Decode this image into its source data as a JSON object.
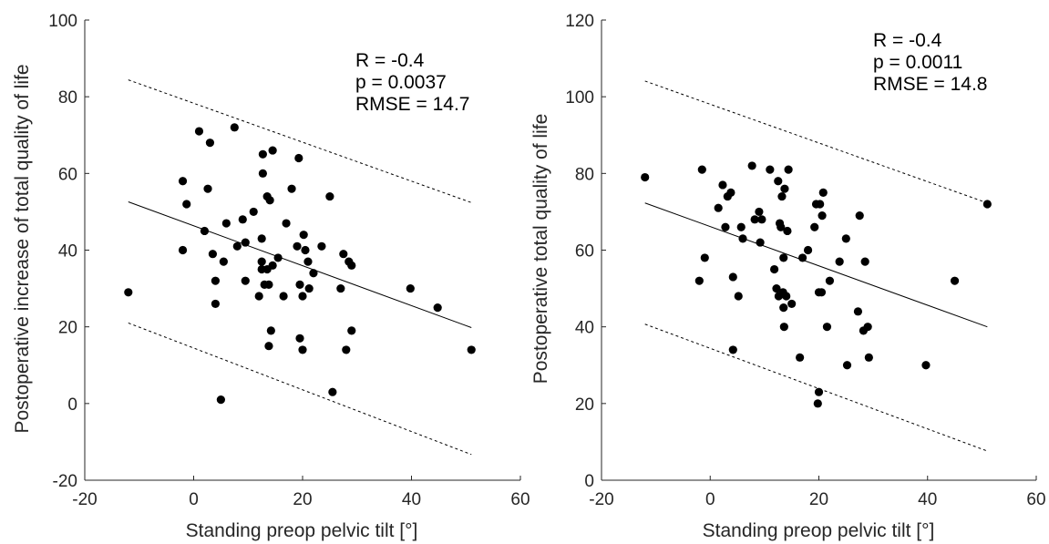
{
  "chart_data": [
    {
      "type": "scatter",
      "xlabel": "Standing preop pelvic tilt [°]",
      "ylabel": "Postoperative increase of total quality of life",
      "xlim": [
        -20,
        60
      ],
      "ylim": [
        -20,
        100
      ],
      "xticks": [
        -20,
        0,
        20,
        40,
        60
      ],
      "yticks": [
        -20,
        0,
        20,
        40,
        60,
        80,
        100
      ],
      "x_tick_labels": [
        "-20",
        "0",
        "20",
        "40",
        "60"
      ],
      "y_tick_labels": [
        "-20",
        "0",
        "20",
        "40",
        "60",
        "80",
        "100"
      ],
      "annotations": [
        "R = -0.4",
        "p = 0.0037",
        "RMSE = 14.7"
      ],
      "fit_line": {
        "x": [
          -12,
          51
        ],
        "y": [
          52.6,
          19.8
        ]
      },
      "prediction_bounds": {
        "upper": {
          "x": [
            -12,
            51
          ],
          "y": [
            84.4,
            52.4
          ]
        },
        "lower": {
          "x": [
            -12,
            51
          ],
          "y": [
            21.0,
            -13.3
          ]
        }
      },
      "points": [
        [
          -12,
          29
        ],
        [
          -2,
          40
        ],
        [
          -2,
          58
        ],
        [
          -1.3,
          52
        ],
        [
          1,
          71
        ],
        [
          2,
          45
        ],
        [
          2.6,
          56
        ],
        [
          3,
          68
        ],
        [
          3.5,
          39
        ],
        [
          4,
          32
        ],
        [
          4,
          26
        ],
        [
          5,
          1
        ],
        [
          5.5,
          37
        ],
        [
          6,
          47
        ],
        [
          7.5,
          72
        ],
        [
          8,
          41
        ],
        [
          9,
          48
        ],
        [
          9.5,
          32
        ],
        [
          9.5,
          42
        ],
        [
          11,
          50
        ],
        [
          12,
          28
        ],
        [
          12.5,
          37
        ],
        [
          12.5,
          35
        ],
        [
          12.5,
          43
        ],
        [
          12.7,
          60
        ],
        [
          12.7,
          65
        ],
        [
          13,
          31
        ],
        [
          13.5,
          54
        ],
        [
          13.5,
          35
        ],
        [
          13.8,
          31
        ],
        [
          13.8,
          15
        ],
        [
          14,
          53
        ],
        [
          14.2,
          19
        ],
        [
          14.5,
          36
        ],
        [
          14.5,
          66
        ],
        [
          15.5,
          38
        ],
        [
          16.5,
          28
        ],
        [
          17,
          47
        ],
        [
          18,
          56
        ],
        [
          19,
          41
        ],
        [
          19.3,
          64
        ],
        [
          19.5,
          31
        ],
        [
          19.5,
          17
        ],
        [
          20,
          14
        ],
        [
          20,
          28
        ],
        [
          20.2,
          44
        ],
        [
          20.5,
          40
        ],
        [
          21,
          37
        ],
        [
          21.2,
          30
        ],
        [
          22,
          34
        ],
        [
          23.5,
          41
        ],
        [
          25,
          54
        ],
        [
          25.5,
          3
        ],
        [
          27,
          30
        ],
        [
          27.5,
          39
        ],
        [
          28,
          14
        ],
        [
          28.5,
          37
        ],
        [
          29,
          36
        ],
        [
          29,
          19
        ],
        [
          39.8,
          30
        ],
        [
          44.8,
          25
        ],
        [
          51,
          14
        ]
      ]
    },
    {
      "type": "scatter",
      "xlabel": "Standing preop pelvic tilt [°]",
      "ylabel": "Postoperative total quality of life",
      "xlim": [
        -20,
        60
      ],
      "ylim": [
        0,
        120
      ],
      "xticks": [
        -20,
        0,
        20,
        40,
        60
      ],
      "yticks": [
        0,
        20,
        40,
        60,
        80,
        100,
        120
      ],
      "x_tick_labels": [
        "-20",
        "0",
        "20",
        "40",
        "60"
      ],
      "y_tick_labels": [
        "0",
        "20",
        "40",
        "60",
        "80",
        "100",
        "120"
      ],
      "annotations": [
        "R = -0.4",
        "p = 0.0011",
        "RMSE = 14.8"
      ],
      "fit_line": {
        "x": [
          -12,
          51
        ],
        "y": [
          72.3,
          40.0
        ]
      },
      "prediction_bounds": {
        "upper": {
          "x": [
            -12,
            51
          ],
          "y": [
            104.1,
            72.3
          ]
        },
        "lower": {
          "x": [
            -12,
            51
          ],
          "y": [
            40.7,
            7.6
          ]
        }
      },
      "points": [
        [
          -12,
          79
        ],
        [
          -2,
          52
        ],
        [
          -1.5,
          81
        ],
        [
          -1,
          58
        ],
        [
          1.5,
          71
        ],
        [
          2.3,
          77
        ],
        [
          2.8,
          66
        ],
        [
          3.2,
          74
        ],
        [
          3.8,
          75
        ],
        [
          4.2,
          34
        ],
        [
          4.2,
          53
        ],
        [
          5.2,
          48
        ],
        [
          5.7,
          66
        ],
        [
          6,
          63
        ],
        [
          7.7,
          82
        ],
        [
          8.2,
          68
        ],
        [
          9,
          70
        ],
        [
          9.2,
          62
        ],
        [
          9.5,
          68
        ],
        [
          11,
          81
        ],
        [
          11.8,
          55
        ],
        [
          12.2,
          50
        ],
        [
          12.5,
          78
        ],
        [
          12.6,
          48
        ],
        [
          12.8,
          67
        ],
        [
          13,
          66
        ],
        [
          13.2,
          74
        ],
        [
          13.4,
          49
        ],
        [
          13.5,
          58
        ],
        [
          13.5,
          45
        ],
        [
          13.6,
          40
        ],
        [
          13.7,
          76
        ],
        [
          14,
          48
        ],
        [
          14.2,
          65
        ],
        [
          14.4,
          81
        ],
        [
          15,
          46
        ],
        [
          16.5,
          32
        ],
        [
          17,
          58
        ],
        [
          18,
          60
        ],
        [
          19.2,
          66
        ],
        [
          19.5,
          72
        ],
        [
          19.8,
          20
        ],
        [
          20,
          23
        ],
        [
          20,
          49
        ],
        [
          20.2,
          72
        ],
        [
          20.5,
          49
        ],
        [
          20.6,
          69
        ],
        [
          20.8,
          75
        ],
        [
          21.5,
          40
        ],
        [
          22,
          52
        ],
        [
          23.8,
          57
        ],
        [
          25,
          63
        ],
        [
          25.2,
          30
        ],
        [
          27.2,
          44
        ],
        [
          27.5,
          69
        ],
        [
          28.2,
          39
        ],
        [
          28.5,
          57
        ],
        [
          29,
          40
        ],
        [
          29.2,
          32
        ],
        [
          39.7,
          30
        ],
        [
          45,
          52
        ],
        [
          51,
          72
        ]
      ]
    }
  ]
}
